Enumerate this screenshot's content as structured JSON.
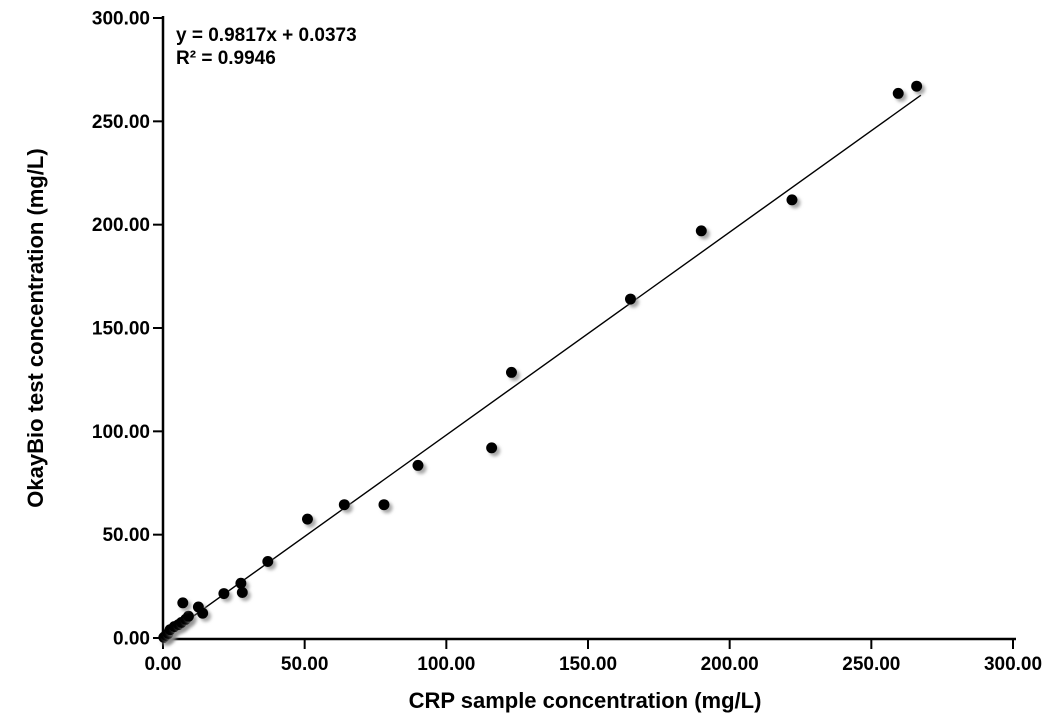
{
  "chart_data": {
    "type": "scatter",
    "title": "",
    "xlabel": "CRP sample concentration (mg/L)",
    "ylabel": "OkayBio test concentration (mg/L)",
    "xlim": [
      0,
      300
    ],
    "ylim": [
      0,
      300
    ],
    "tick_step": 50,
    "x_tick_labels": [
      "0.00",
      "50.00",
      "100.00",
      "150.00",
      "200.00",
      "250.00",
      "300.00"
    ],
    "y_tick_labels": [
      "0.00",
      "50.00",
      "100.00",
      "150.00",
      "200.00",
      "250.00",
      "300.00"
    ],
    "grid": false,
    "legend": "none",
    "annotation": {
      "equation": "y = 0.9817x + 0.0373",
      "r_squared": "R² = 0.9946"
    },
    "trendline": {
      "slope": 0.9817,
      "intercept": 0.0373,
      "x_start": 0,
      "x_end": 267.5,
      "color": "#000000"
    },
    "points": [
      [
        0.3,
        0.3
      ],
      [
        1.0,
        1.2
      ],
      [
        1.8,
        2.2
      ],
      [
        2.5,
        4.0
      ],
      [
        4.0,
        5.5
      ],
      [
        5.5,
        6.5
      ],
      [
        6.5,
        7.5
      ],
      [
        8.0,
        9.0
      ],
      [
        9.0,
        10.5
      ],
      [
        7.0,
        17.0
      ],
      [
        12.5,
        15.0
      ],
      [
        14.0,
        12.0
      ],
      [
        21.5,
        21.5
      ],
      [
        27.5,
        26.5
      ],
      [
        28.0,
        22.0
      ],
      [
        37.0,
        37.0
      ],
      [
        51.0,
        57.5
      ],
      [
        64.0,
        64.5
      ],
      [
        78.0,
        64.5
      ],
      [
        90.0,
        83.5
      ],
      [
        116.0,
        92.0
      ],
      [
        123.0,
        128.5
      ],
      [
        165.0,
        164.0
      ],
      [
        190.0,
        197.0
      ],
      [
        222.0,
        212.0
      ],
      [
        259.5,
        263.5
      ],
      [
        266.0,
        267.0
      ]
    ],
    "marker_color": "#000000",
    "axis_color": "#000000",
    "background": "#ffffff"
  }
}
